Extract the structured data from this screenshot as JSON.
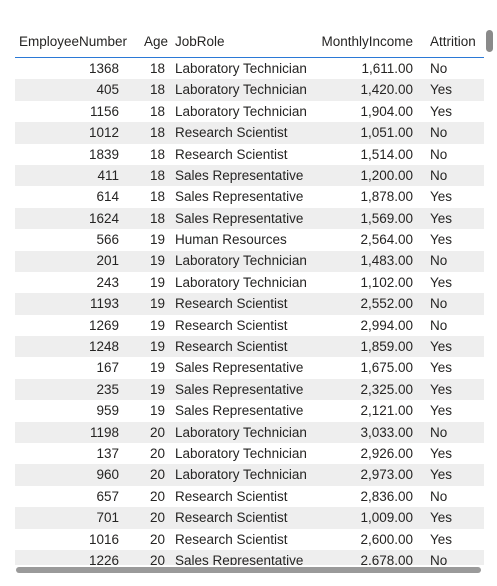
{
  "table": {
    "columns": [
      "EmployeeNumber",
      "Age",
      "JobRole",
      "MonthlyIncome",
      "Attrition"
    ],
    "rows": [
      [
        "1368",
        "18",
        "Laboratory Technician",
        "1,611.00",
        "No"
      ],
      [
        "405",
        "18",
        "Laboratory Technician",
        "1,420.00",
        "Yes"
      ],
      [
        "1156",
        "18",
        "Laboratory Technician",
        "1,904.00",
        "Yes"
      ],
      [
        "1012",
        "18",
        "Research Scientist",
        "1,051.00",
        "No"
      ],
      [
        "1839",
        "18",
        "Research Scientist",
        "1,514.00",
        "No"
      ],
      [
        "411",
        "18",
        "Sales Representative",
        "1,200.00",
        "No"
      ],
      [
        "614",
        "18",
        "Sales Representative",
        "1,878.00",
        "Yes"
      ],
      [
        "1624",
        "18",
        "Sales Representative",
        "1,569.00",
        "Yes"
      ],
      [
        "566",
        "19",
        "Human Resources",
        "2,564.00",
        "Yes"
      ],
      [
        "201",
        "19",
        "Laboratory Technician",
        "1,483.00",
        "No"
      ],
      [
        "243",
        "19",
        "Laboratory Technician",
        "1,102.00",
        "Yes"
      ],
      [
        "1193",
        "19",
        "Research Scientist",
        "2,552.00",
        "No"
      ],
      [
        "1269",
        "19",
        "Research Scientist",
        "2,994.00",
        "No"
      ],
      [
        "1248",
        "19",
        "Research Scientist",
        "1,859.00",
        "Yes"
      ],
      [
        "167",
        "19",
        "Sales Representative",
        "1,675.00",
        "Yes"
      ],
      [
        "235",
        "19",
        "Sales Representative",
        "2,325.00",
        "Yes"
      ],
      [
        "959",
        "19",
        "Sales Representative",
        "2,121.00",
        "Yes"
      ],
      [
        "1198",
        "20",
        "Laboratory Technician",
        "3,033.00",
        "No"
      ],
      [
        "137",
        "20",
        "Laboratory Technician",
        "2,926.00",
        "Yes"
      ],
      [
        "960",
        "20",
        "Laboratory Technician",
        "2,973.00",
        "Yes"
      ],
      [
        "657",
        "20",
        "Research Scientist",
        "2,836.00",
        "No"
      ],
      [
        "701",
        "20",
        "Research Scientist",
        "1,009.00",
        "Yes"
      ],
      [
        "1016",
        "20",
        "Research Scientist",
        "2,600.00",
        "Yes"
      ],
      [
        "1226",
        "20",
        "Sales Representative",
        "2,678.00",
        "No"
      ]
    ]
  }
}
